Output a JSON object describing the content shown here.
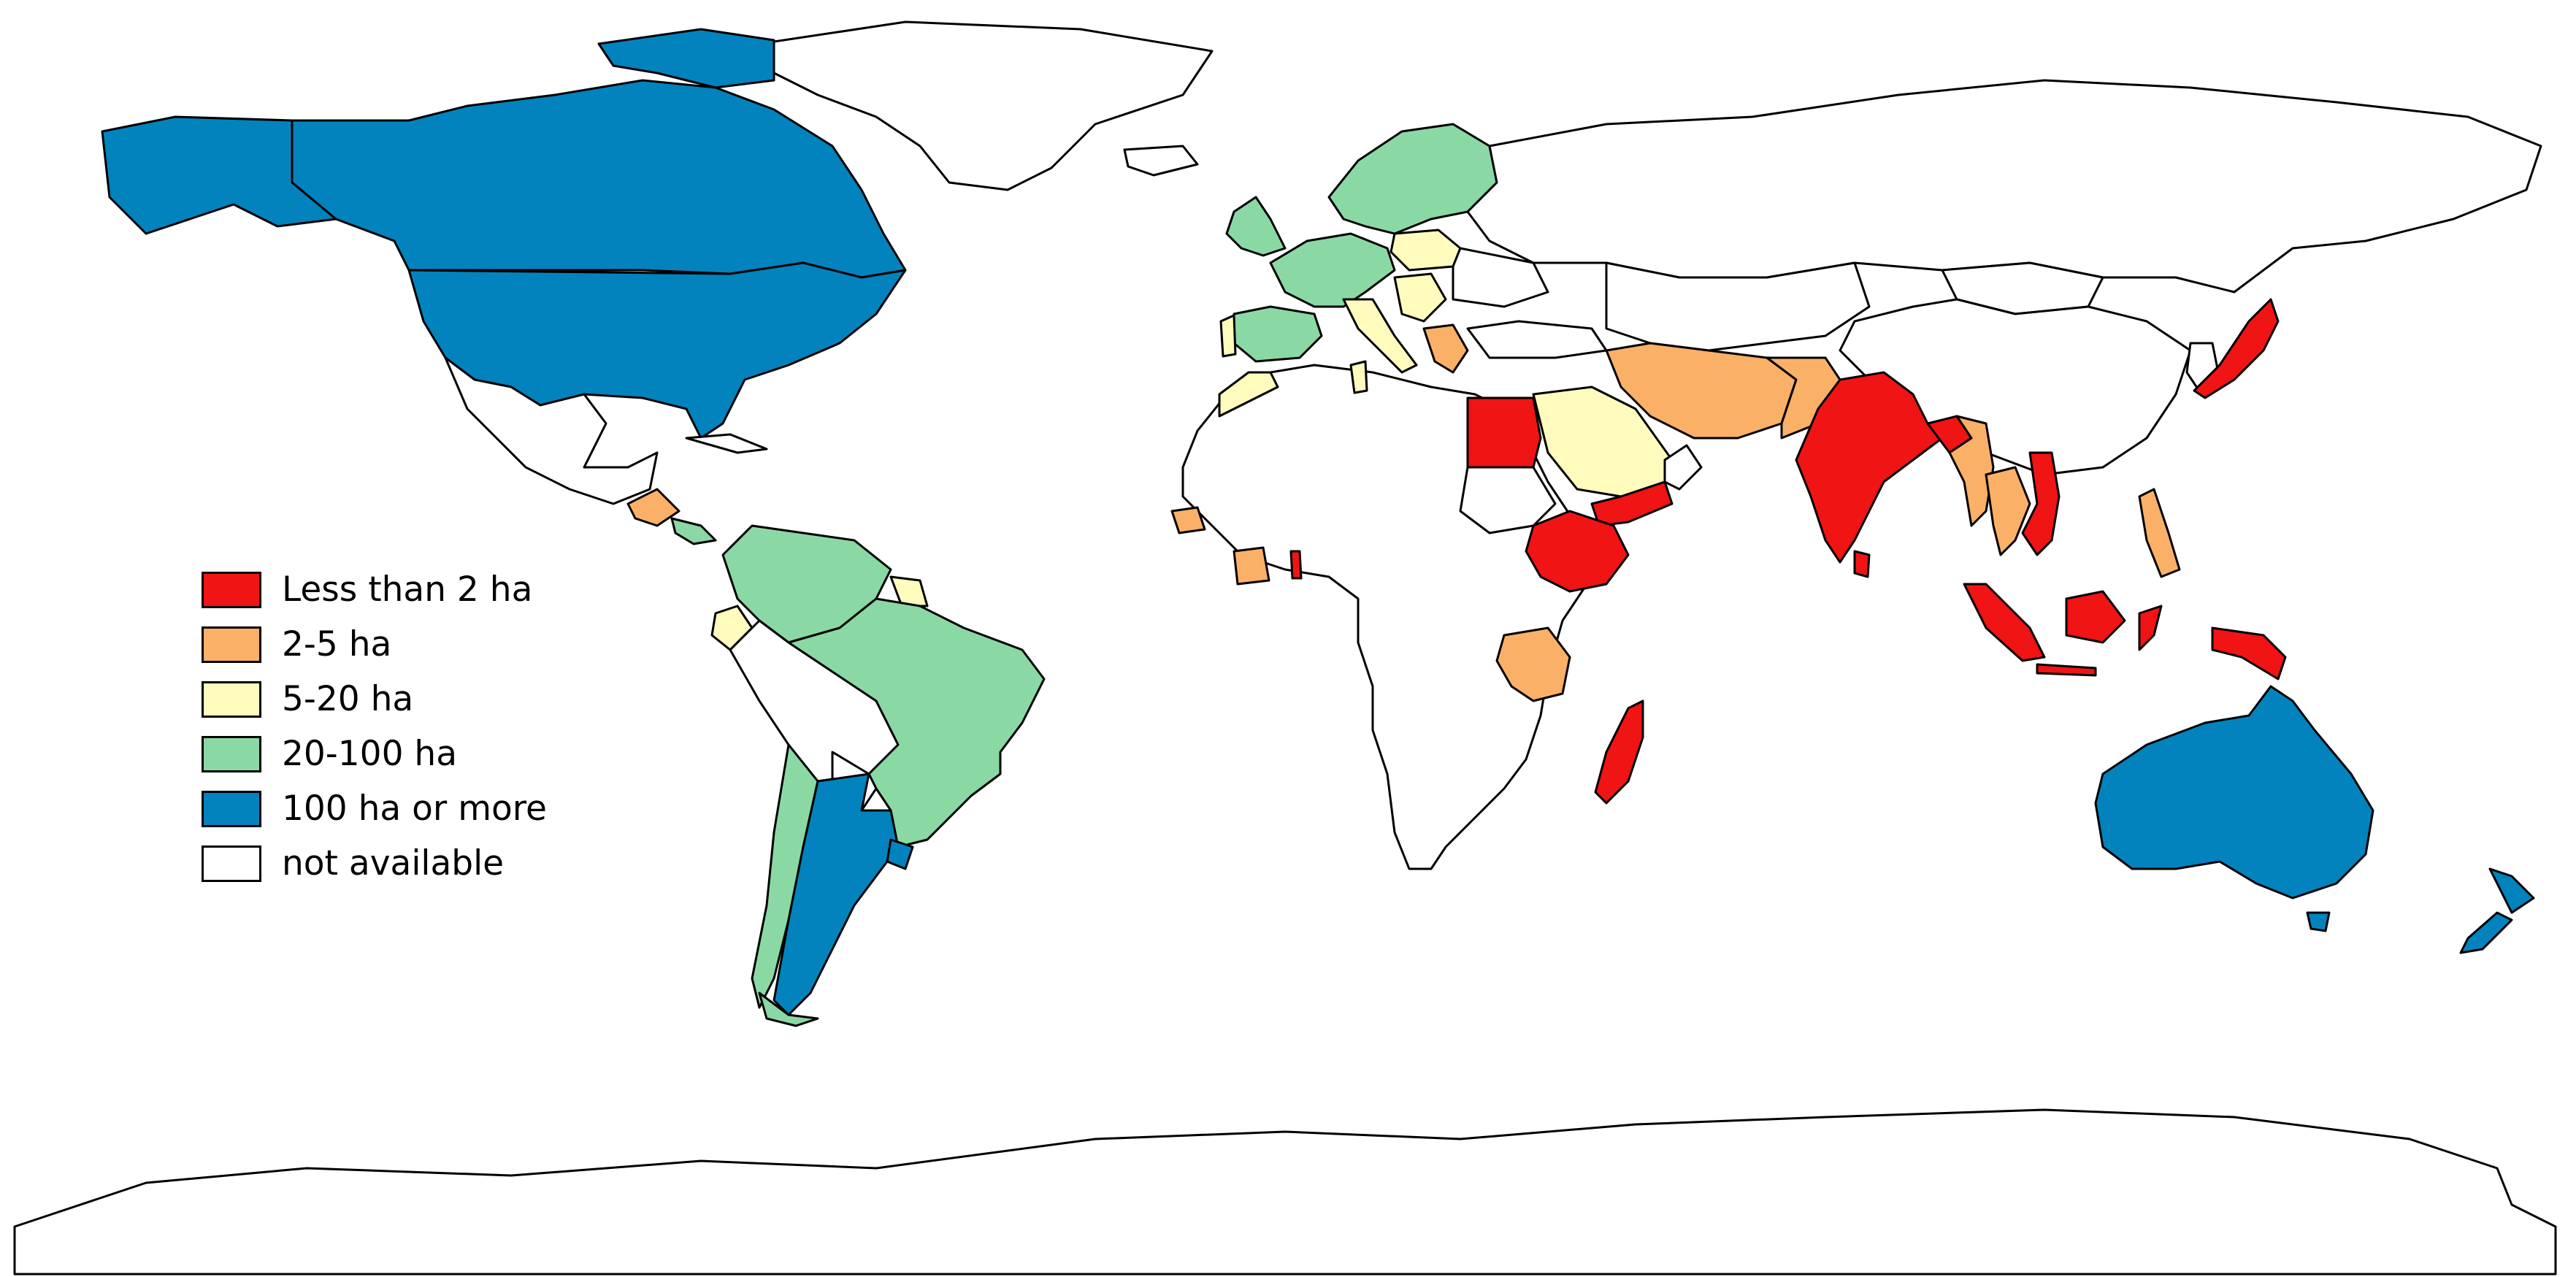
{
  "legend": {
    "items": [
      {
        "label": "Less than 2 ha",
        "color": "#f01414"
      },
      {
        "label": "2-5 ha",
        "color": "#fbb068"
      },
      {
        "label": "5-20 ha",
        "color": "#fefbbd"
      },
      {
        "label": "20-100 ha",
        "color": "#8ad9a5"
      },
      {
        "label": "100 ha or more",
        "color": "#0383be"
      },
      {
        "label": "not available",
        "color": "#ffffff"
      }
    ]
  },
  "regions": [
    {
      "name": "Canada",
      "category": "100 ha or more"
    },
    {
      "name": "United States",
      "category": "100 ha or more"
    },
    {
      "name": "Mexico",
      "category": "not available"
    },
    {
      "name": "Brazil",
      "category": "20-100 ha"
    },
    {
      "name": "Argentina",
      "category": "100 ha or more"
    },
    {
      "name": "India",
      "category": "Less than 2 ha"
    },
    {
      "name": "Egypt",
      "category": "Less than 2 ha"
    },
    {
      "name": "Ethiopia",
      "category": "Less than 2 ha"
    },
    {
      "name": "Madagascar",
      "category": "Less than 2 ha"
    },
    {
      "name": "Japan",
      "category": "Less than 2 ha"
    },
    {
      "name": "Indonesia",
      "category": "Less than 2 ha"
    },
    {
      "name": "Iran",
      "category": "2-5 ha"
    },
    {
      "name": "Tanzania",
      "category": "2-5 ha"
    },
    {
      "name": "Saudi Arabia",
      "category": "5-20 ha"
    },
    {
      "name": "Australia",
      "category": "100 ha or more"
    },
    {
      "name": "New Zealand",
      "category": "100 ha or more"
    }
  ]
}
